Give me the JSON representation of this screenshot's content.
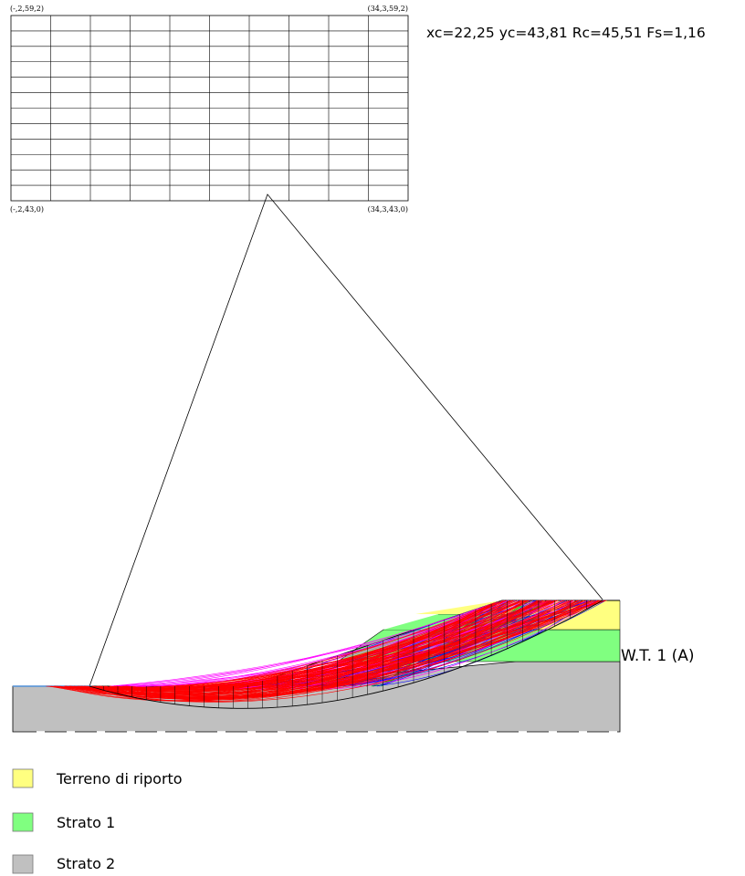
{
  "grid": {
    "corner_top_left": "(-,2,59,2)",
    "corner_top_right": "(34,3,59,2)",
    "corner_bottom_left": "(-,2,43,0)",
    "corner_bottom_right": "(34,3,43,0)",
    "columns": 10,
    "rows": 12
  },
  "result": {
    "text": "xc=22,25 yc=43,81 Rc=45,51 Fs=1,16"
  },
  "water_table": {
    "label": "W.T. 1 (A)"
  },
  "legend": {
    "items": [
      {
        "label": "Terreno di riporto",
        "color": "#ffff80"
      },
      {
        "label": "Strato 1",
        "color": "#80ff80"
      },
      {
        "label": "Strato 2",
        "color": "#c0c0c0"
      }
    ]
  },
  "colors": {
    "surfaces_primary": "#ff0000",
    "surfaces_secondary": "#ff00ff",
    "surfaces_tertiary": "#0000ff",
    "surfaces_quaternary": "#00c000"
  }
}
